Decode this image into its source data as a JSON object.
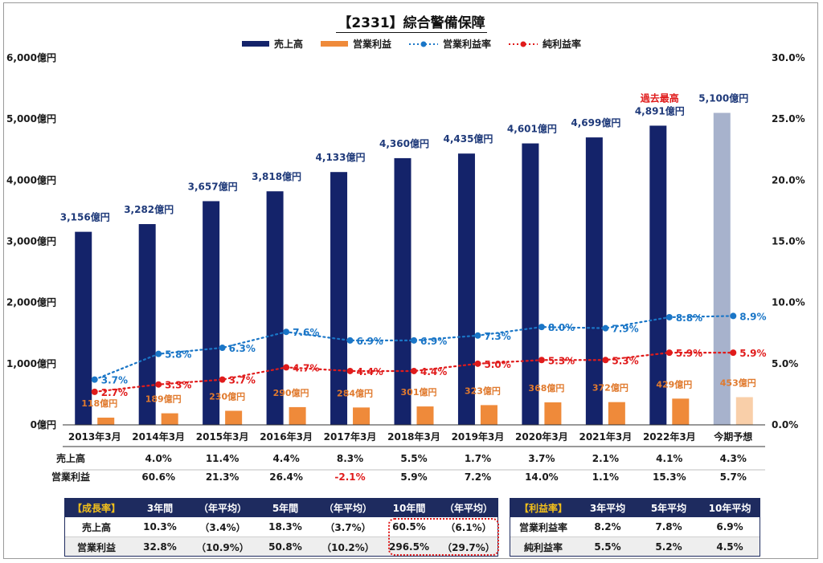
{
  "title": "【2331】綜合警備保障",
  "legend": [
    {
      "label": "売上高",
      "color": "#14236a",
      "kind": "bar"
    },
    {
      "label": "営業利益",
      "color": "#ef8a3a",
      "kind": "bar"
    },
    {
      "label": "営業利益率",
      "color": "#1a76c7",
      "kind": "line"
    },
    {
      "label": "純利益率",
      "color": "#e01b1b",
      "kind": "line"
    }
  ],
  "chart_data": {
    "type": "bar",
    "categories": [
      "2013年3月",
      "2014年3月",
      "2015年3月",
      "2016年3月",
      "2017年3月",
      "2018年3月",
      "2019年3月",
      "2020年3月",
      "2021年3月",
      "2022年3月",
      "今期予想"
    ],
    "left_axis": {
      "ticks": [
        "0億円",
        "1,000億円",
        "2,000億円",
        "3,000億円",
        "4,000億円",
        "5,000億円",
        "6,000億円"
      ],
      "min": 0,
      "max": 6000
    },
    "right_axis": {
      "ticks": [
        "0.0%",
        "5.0%",
        "10.0%",
        "15.0%",
        "20.0%",
        "25.0%",
        "30.0%"
      ],
      "min": 0,
      "max": 30
    },
    "grid": false,
    "legend_position": "top",
    "series": [
      {
        "name": "売上高",
        "kind": "bar",
        "axis": "left",
        "values": [
          3156,
          3282,
          3657,
          3818,
          4133,
          4360,
          4435,
          4601,
          4699,
          4891,
          5100
        ],
        "labels": [
          "3,156億円",
          "3,282億円",
          "3,657億円",
          "3,818億円",
          "4,133億円",
          "4,360億円",
          "4,435億円",
          "4,601億円",
          "4,699億円",
          "4,891億円",
          "5,100億円"
        ]
      },
      {
        "name": "営業利益",
        "kind": "bar",
        "axis": "left",
        "values": [
          118,
          189,
          230,
          290,
          284,
          301,
          323,
          368,
          372,
          429,
          453
        ],
        "labels": [
          "118億円",
          "189億円",
          "230億円",
          "290億円",
          "284億円",
          "301億円",
          "323億円",
          "368億円",
          "372億円",
          "429億円",
          "453億円"
        ]
      },
      {
        "name": "営業利益率",
        "kind": "line",
        "axis": "right",
        "values": [
          3.7,
          5.8,
          6.3,
          7.6,
          6.9,
          6.9,
          7.3,
          8.0,
          7.9,
          8.8,
          8.9
        ],
        "labels": [
          "3.7%",
          "5.8%",
          "6.3%",
          "7.6%",
          "6.9%",
          "6.9%",
          "7.3%",
          "8.0%",
          "7.9%",
          "8.8%",
          "8.9%"
        ]
      },
      {
        "name": "純利益率",
        "kind": "line",
        "axis": "right",
        "values": [
          2.7,
          3.3,
          3.7,
          4.7,
          4.4,
          4.4,
          5.0,
          5.3,
          5.3,
          5.9,
          5.9
        ],
        "labels": [
          "2.7%",
          "3.3%",
          "3.7%",
          "4.7%",
          "4.4%",
          "4.4%",
          "5.0%",
          "5.3%",
          "5.3%",
          "5.9%",
          "5.9%"
        ]
      }
    ],
    "annotation": {
      "text": "過去最高",
      "category_index": 9
    }
  },
  "growth_rows": [
    {
      "label": "売上高",
      "values": [
        "",
        "4.0%",
        "11.4%",
        "4.4%",
        "8.3%",
        "5.5%",
        "1.7%",
        "3.7%",
        "2.1%",
        "4.1%",
        "4.3%"
      ]
    },
    {
      "label": "営業利益",
      "values": [
        "",
        "60.6%",
        "21.3%",
        "26.4%",
        "-2.1%",
        "5.9%",
        "7.2%",
        "14.0%",
        "1.1%",
        "15.3%",
        "5.7%"
      ]
    }
  ],
  "growth_table": {
    "header": [
      "【成長率】",
      "3年間",
      "（年平均）",
      "5年間",
      "（年平均）",
      "10年間",
      "（年平均）"
    ],
    "rows": [
      [
        "売上高",
        "10.3%",
        "（3.4%）",
        "18.3%",
        "（3.7%）",
        "60.5%",
        "（6.1%）"
      ],
      [
        "営業利益",
        "32.8%",
        "（10.9%）",
        "50.8%",
        "（10.2%）",
        "296.5%",
        "（29.7%）"
      ]
    ]
  },
  "margin_table": {
    "header": [
      "【利益率】",
      "3年平均",
      "5年平均",
      "10年平均"
    ],
    "rows": [
      [
        "営業利益率",
        "8.2%",
        "7.8%",
        "6.9%"
      ],
      [
        "純利益率",
        "5.5%",
        "5.2%",
        "4.5%"
      ]
    ]
  }
}
